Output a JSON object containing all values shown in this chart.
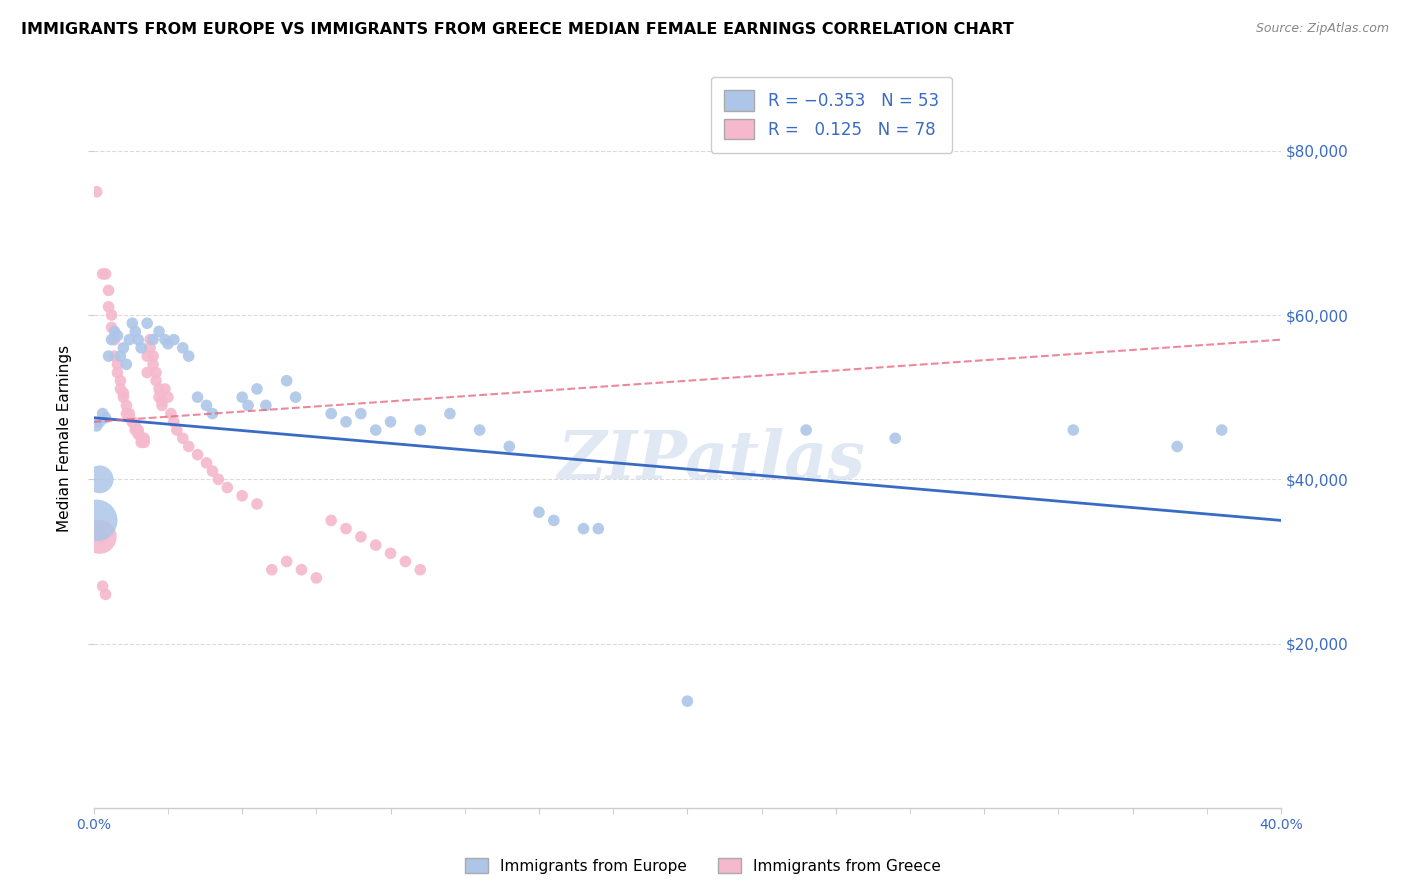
{
  "title": "IMMIGRANTS FROM EUROPE VS IMMIGRANTS FROM GREECE MEDIAN FEMALE EARNINGS CORRELATION CHART",
  "source": "Source: ZipAtlas.com",
  "ylabel": "Median Female Earnings",
  "ytick_values": [
    20000,
    40000,
    60000,
    80000
  ],
  "xlim": [
    0.0,
    0.4
  ],
  "ylim": [
    0,
    90000
  ],
  "europe_color": "#adc6e8",
  "greece_color": "#f5b8cc",
  "europe_line_color": "#3a6bc4",
  "greece_line_color": "#e8607a",
  "greece_line_dash": "#e8a0b0",
  "watermark": "ZIPatlas",
  "europe_scatter": [
    [
      0.001,
      46500
    ],
    [
      0.002,
      47000
    ],
    [
      0.003,
      48000
    ],
    [
      0.004,
      47500
    ],
    [
      0.005,
      55000
    ],
    [
      0.006,
      57000
    ],
    [
      0.007,
      58000
    ],
    [
      0.008,
      57500
    ],
    [
      0.009,
      55000
    ],
    [
      0.01,
      56000
    ],
    [
      0.011,
      54000
    ],
    [
      0.012,
      57000
    ],
    [
      0.013,
      59000
    ],
    [
      0.014,
      58000
    ],
    [
      0.015,
      57000
    ],
    [
      0.016,
      56000
    ],
    [
      0.018,
      59000
    ],
    [
      0.02,
      57000
    ],
    [
      0.022,
      58000
    ],
    [
      0.024,
      57000
    ],
    [
      0.025,
      56500
    ],
    [
      0.027,
      57000
    ],
    [
      0.03,
      56000
    ],
    [
      0.032,
      55000
    ],
    [
      0.035,
      50000
    ],
    [
      0.038,
      49000
    ],
    [
      0.04,
      48000
    ],
    [
      0.05,
      50000
    ],
    [
      0.052,
      49000
    ],
    [
      0.055,
      51000
    ],
    [
      0.058,
      49000
    ],
    [
      0.065,
      52000
    ],
    [
      0.068,
      50000
    ],
    [
      0.08,
      48000
    ],
    [
      0.085,
      47000
    ],
    [
      0.09,
      48000
    ],
    [
      0.095,
      46000
    ],
    [
      0.1,
      47000
    ],
    [
      0.11,
      46000
    ],
    [
      0.12,
      48000
    ],
    [
      0.13,
      46000
    ],
    [
      0.14,
      44000
    ],
    [
      0.15,
      36000
    ],
    [
      0.155,
      35000
    ],
    [
      0.165,
      34000
    ],
    [
      0.17,
      34000
    ],
    [
      0.2,
      13000
    ],
    [
      0.24,
      46000
    ],
    [
      0.27,
      45000
    ],
    [
      0.33,
      46000
    ],
    [
      0.365,
      44000
    ],
    [
      0.38,
      46000
    ]
  ],
  "greece_scatter": [
    [
      0.001,
      75000
    ],
    [
      0.003,
      65000
    ],
    [
      0.004,
      65000
    ],
    [
      0.005,
      63000
    ],
    [
      0.005,
      61000
    ],
    [
      0.006,
      60000
    ],
    [
      0.006,
      58500
    ],
    [
      0.007,
      57000
    ],
    [
      0.007,
      55000
    ],
    [
      0.008,
      54000
    ],
    [
      0.008,
      53000
    ],
    [
      0.009,
      52000
    ],
    [
      0.009,
      51000
    ],
    [
      0.01,
      50000
    ],
    [
      0.01,
      50500
    ],
    [
      0.011,
      49000
    ],
    [
      0.011,
      48000
    ],
    [
      0.012,
      48000
    ],
    [
      0.012,
      47500
    ],
    [
      0.013,
      47000
    ],
    [
      0.013,
      47000
    ],
    [
      0.014,
      46500
    ],
    [
      0.014,
      46000
    ],
    [
      0.015,
      46000
    ],
    [
      0.015,
      45500
    ],
    [
      0.016,
      45000
    ],
    [
      0.016,
      44500
    ],
    [
      0.017,
      45000
    ],
    [
      0.017,
      44500
    ],
    [
      0.018,
      55000
    ],
    [
      0.018,
      53000
    ],
    [
      0.019,
      57000
    ],
    [
      0.019,
      56000
    ],
    [
      0.02,
      55000
    ],
    [
      0.02,
      54000
    ],
    [
      0.021,
      53000
    ],
    [
      0.021,
      52000
    ],
    [
      0.022,
      51000
    ],
    [
      0.022,
      50000
    ],
    [
      0.023,
      49000
    ],
    [
      0.023,
      49500
    ],
    [
      0.024,
      51000
    ],
    [
      0.025,
      50000
    ],
    [
      0.026,
      48000
    ],
    [
      0.027,
      47000
    ],
    [
      0.028,
      46000
    ],
    [
      0.03,
      45000
    ],
    [
      0.032,
      44000
    ],
    [
      0.035,
      43000
    ],
    [
      0.038,
      42000
    ],
    [
      0.04,
      41000
    ],
    [
      0.042,
      40000
    ],
    [
      0.045,
      39000
    ],
    [
      0.05,
      38000
    ],
    [
      0.055,
      37000
    ],
    [
      0.06,
      29000
    ],
    [
      0.065,
      30000
    ],
    [
      0.07,
      29000
    ],
    [
      0.075,
      28000
    ],
    [
      0.08,
      35000
    ],
    [
      0.085,
      34000
    ],
    [
      0.09,
      33000
    ],
    [
      0.095,
      32000
    ],
    [
      0.1,
      31000
    ],
    [
      0.105,
      30000
    ],
    [
      0.11,
      29000
    ],
    [
      0.002,
      34000
    ],
    [
      0.003,
      33000
    ],
    [
      0.003,
      27000
    ],
    [
      0.004,
      26000
    ]
  ],
  "greece_large": [
    [
      0.002,
      33000,
      600
    ]
  ],
  "background_color": "#ffffff",
  "grid_color": "#d8d8d8"
}
